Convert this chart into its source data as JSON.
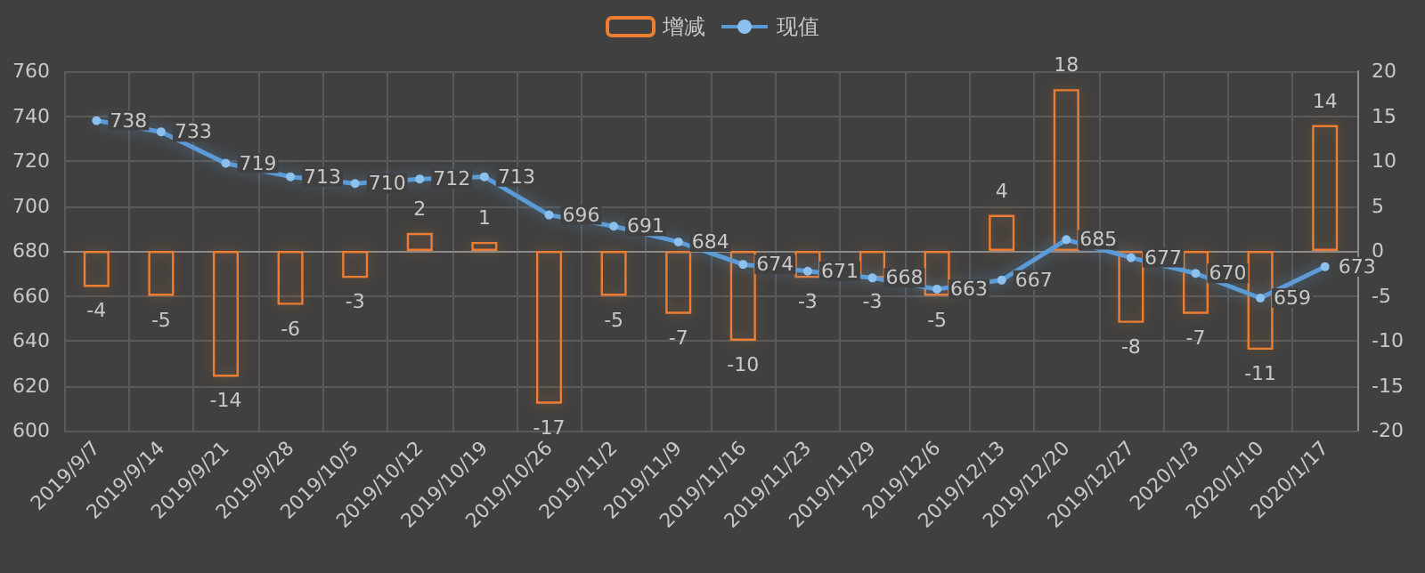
{
  "chart_data": {
    "type": "bar",
    "categories": [
      "2019/9/7",
      "2019/9/14",
      "2019/9/21",
      "2019/9/28",
      "2019/10/5",
      "2019/10/12",
      "2019/10/19",
      "2019/10/26",
      "2019/11/2",
      "2019/11/9",
      "2019/11/16",
      "2019/11/23",
      "2019/11/29",
      "2019/12/6",
      "2019/12/13",
      "2019/12/20",
      "2019/12/27",
      "2020/1/3",
      "2020/1/10",
      "2020/1/17"
    ],
    "series": [
      {
        "name": "增减",
        "axis": "y2",
        "color": "#ed7d31",
        "values": [
          -4,
          -5,
          -14,
          -6,
          -3,
          2,
          1,
          -17,
          -5,
          -7,
          -10,
          -3,
          -3,
          -5,
          4,
          18,
          -8,
          -7,
          -11,
          14
        ]
      },
      {
        "name": "现值",
        "type": "line",
        "color": "#5b9bd5",
        "values": [
          738,
          733,
          719,
          713,
          710,
          712,
          713,
          696,
          691,
          684,
          674,
          671,
          668,
          663,
          667,
          685,
          677,
          670,
          659,
          673
        ]
      }
    ],
    "ylim": [
      600,
      760
    ],
    "yticks": [
      600,
      620,
      640,
      660,
      680,
      700,
      720,
      740,
      760
    ],
    "y2lim": [
      -20,
      20
    ],
    "y2ticks": [
      -20,
      -15,
      -10,
      -5,
      0,
      5,
      10,
      15,
      20
    ],
    "data_labels": true,
    "grid": true,
    "legend": "top",
    "marker": "circle",
    "line_style": "solid"
  }
}
